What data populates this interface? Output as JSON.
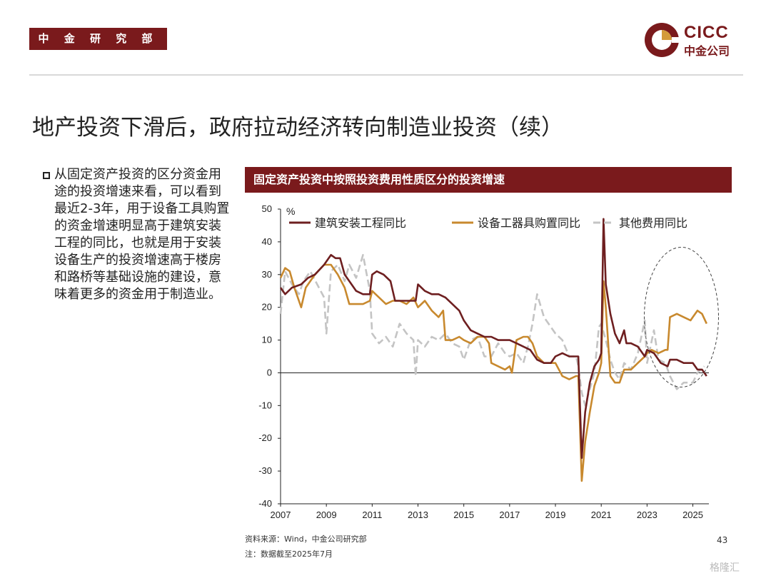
{
  "header": {
    "department": "中 金 研 究 部",
    "logo_en": "CICC",
    "logo_cn": "中金公司"
  },
  "title": "地产投资下滑后，政府拉动经济转向制造业投资（续）",
  "bullet": "从固定资产投资的区分资金用途的投资增速来看，可以看到最近2-3年，用于设备工具购置的资金增速明显高于建筑安装工程的同比，也就是用于安装设备生产的投资增速高于楼房和路桥等基础设施的建设，意味着更多的资金用于制造业。",
  "chart_title": "固定资产投资中按照投资费用性质区分的投资增速",
  "footer": {
    "source": "资料来源：Wind，中金公司研究部",
    "note": "注：数据截至2025年7月",
    "page": "43",
    "watermark": "格隆汇"
  },
  "colors": {
    "brand": "#7a1a1c",
    "construction": "#6e1f20",
    "equipment": "#c8892e",
    "other": "#c4c4c4"
  },
  "chart_data": {
    "type": "line",
    "unit_label": "%",
    "ylim": [
      -40,
      50
    ],
    "yticks": [
      50,
      40,
      30,
      20,
      10,
      0,
      -10,
      -20,
      -30,
      -40
    ],
    "xlim": [
      2007,
      2025.7
    ],
    "xticks": [
      "2007",
      "2009",
      "2011",
      "2013",
      "2015",
      "2017",
      "2019",
      "2021",
      "2023",
      "2025"
    ],
    "legend_position": "top",
    "annotation": "dashed-ellipse around 2023-2025",
    "series": [
      {
        "name": "建筑安装工程同比",
        "color": "#6e1f20",
        "dash": "",
        "points": [
          [
            2007.0,
            26
          ],
          [
            2007.2,
            24
          ],
          [
            2007.5,
            26
          ],
          [
            2007.9,
            27
          ],
          [
            2008.2,
            29
          ],
          [
            2008.5,
            30
          ],
          [
            2008.9,
            33
          ],
          [
            2009.2,
            36
          ],
          [
            2009.4,
            35
          ],
          [
            2009.6,
            35
          ],
          [
            2009.8,
            30
          ],
          [
            2010.0,
            28
          ],
          [
            2010.3,
            25
          ],
          [
            2010.6,
            24
          ],
          [
            2010.9,
            24
          ],
          [
            2011.0,
            30
          ],
          [
            2011.2,
            31
          ],
          [
            2011.5,
            30
          ],
          [
            2011.8,
            28
          ],
          [
            2012.0,
            22
          ],
          [
            2012.3,
            22
          ],
          [
            2012.6,
            22
          ],
          [
            2012.9,
            22
          ],
          [
            2013.0,
            27
          ],
          [
            2013.3,
            25
          ],
          [
            2013.6,
            24
          ],
          [
            2013.9,
            24
          ],
          [
            2014.2,
            23
          ],
          [
            2014.5,
            21
          ],
          [
            2014.8,
            19
          ],
          [
            2015.0,
            16
          ],
          [
            2015.3,
            13
          ],
          [
            2015.6,
            12
          ],
          [
            2015.9,
            11
          ],
          [
            2016.2,
            11
          ],
          [
            2016.5,
            10
          ],
          [
            2016.8,
            10
          ],
          [
            2017.0,
            10
          ],
          [
            2017.3,
            9
          ],
          [
            2017.6,
            8
          ],
          [
            2017.9,
            7
          ],
          [
            2018.2,
            4
          ],
          [
            2018.5,
            3
          ],
          [
            2018.8,
            3
          ],
          [
            2019.0,
            5
          ],
          [
            2019.3,
            6
          ],
          [
            2019.6,
            5
          ],
          [
            2019.9,
            5
          ],
          [
            2020.0,
            5
          ],
          [
            2020.15,
            -26
          ],
          [
            2020.3,
            -12
          ],
          [
            2020.5,
            -3
          ],
          [
            2020.7,
            2
          ],
          [
            2020.9,
            4
          ],
          [
            2021.0,
            6
          ],
          [
            2021.1,
            47
          ],
          [
            2021.2,
            27
          ],
          [
            2021.4,
            18
          ],
          [
            2021.6,
            12
          ],
          [
            2021.8,
            9
          ],
          [
            2022.0,
            13
          ],
          [
            2022.1,
            9
          ],
          [
            2022.3,
            9
          ],
          [
            2022.6,
            8
          ],
          [
            2022.9,
            5
          ],
          [
            2023.0,
            7
          ],
          [
            2023.3,
            6
          ],
          [
            2023.6,
            3
          ],
          [
            2023.9,
            2
          ],
          [
            2024.0,
            4
          ],
          [
            2024.3,
            4
          ],
          [
            2024.6,
            3
          ],
          [
            2024.9,
            3
          ],
          [
            2025.0,
            3
          ],
          [
            2025.2,
            1
          ],
          [
            2025.4,
            1
          ],
          [
            2025.6,
            -1
          ]
        ]
      },
      {
        "name": "设备工器具购置同比",
        "color": "#c8892e",
        "dash": "",
        "points": [
          [
            2007.0,
            29
          ],
          [
            2007.2,
            32
          ],
          [
            2007.4,
            31
          ],
          [
            2007.6,
            26
          ],
          [
            2007.9,
            20
          ],
          [
            2008.1,
            26
          ],
          [
            2008.5,
            30
          ],
          [
            2008.9,
            33
          ],
          [
            2009.2,
            33
          ],
          [
            2009.5,
            30
          ],
          [
            2009.8,
            26
          ],
          [
            2010.0,
            21
          ],
          [
            2010.3,
            21
          ],
          [
            2010.6,
            21
          ],
          [
            2010.9,
            22
          ],
          [
            2011.0,
            25
          ],
          [
            2011.3,
            23
          ],
          [
            2011.6,
            21
          ],
          [
            2011.9,
            22
          ],
          [
            2012.2,
            22
          ],
          [
            2012.5,
            21
          ],
          [
            2012.8,
            23
          ],
          [
            2013.0,
            20
          ],
          [
            2013.3,
            22
          ],
          [
            2013.6,
            19
          ],
          [
            2013.9,
            17
          ],
          [
            2014.1,
            19
          ],
          [
            2014.2,
            10
          ],
          [
            2014.5,
            10
          ],
          [
            2014.8,
            11
          ],
          [
            2015.0,
            10
          ],
          [
            2015.3,
            9
          ],
          [
            2015.6,
            11
          ],
          [
            2015.9,
            11
          ],
          [
            2016.1,
            9
          ],
          [
            2016.2,
            3
          ],
          [
            2016.5,
            2
          ],
          [
            2016.8,
            1
          ],
          [
            2017.0,
            2
          ],
          [
            2017.1,
            0
          ],
          [
            2017.3,
            10
          ],
          [
            2017.6,
            11
          ],
          [
            2017.8,
            11
          ],
          [
            2018.0,
            9
          ],
          [
            2018.2,
            5
          ],
          [
            2018.5,
            3
          ],
          [
            2018.8,
            3
          ],
          [
            2019.0,
            3
          ],
          [
            2019.3,
            -1
          ],
          [
            2019.6,
            -2
          ],
          [
            2019.9,
            -1
          ],
          [
            2020.0,
            -1
          ],
          [
            2020.15,
            -33
          ],
          [
            2020.3,
            -21
          ],
          [
            2020.5,
            -12
          ],
          [
            2020.7,
            -4
          ],
          [
            2020.9,
            0
          ],
          [
            2021.0,
            3
          ],
          [
            2021.1,
            28
          ],
          [
            2021.2,
            20
          ],
          [
            2021.4,
            -1
          ],
          [
            2021.6,
            -3
          ],
          [
            2021.8,
            -3
          ],
          [
            2022.0,
            1
          ],
          [
            2022.3,
            1
          ],
          [
            2022.6,
            3
          ],
          [
            2022.9,
            5
          ],
          [
            2023.0,
            6
          ],
          [
            2023.2,
            7
          ],
          [
            2023.5,
            6
          ],
          [
            2023.8,
            7
          ],
          [
            2023.9,
            7
          ],
          [
            2024.0,
            17
          ],
          [
            2024.3,
            18
          ],
          [
            2024.6,
            17
          ],
          [
            2024.9,
            16
          ],
          [
            2025.0,
            17
          ],
          [
            2025.2,
            19
          ],
          [
            2025.4,
            18
          ],
          [
            2025.6,
            15
          ]
        ]
      },
      {
        "name": "其他费用同比",
        "color": "#c4c4c4",
        "dash": "10,5",
        "points": [
          [
            2007.0,
            18
          ],
          [
            2007.2,
            31
          ],
          [
            2007.5,
            27
          ],
          [
            2007.8,
            24
          ],
          [
            2008.0,
            28
          ],
          [
            2008.3,
            31
          ],
          [
            2008.6,
            27
          ],
          [
            2008.9,
            23
          ],
          [
            2009.0,
            12
          ],
          [
            2009.2,
            31
          ],
          [
            2009.5,
            33
          ],
          [
            2009.8,
            28
          ],
          [
            2010.0,
            33
          ],
          [
            2010.3,
            29
          ],
          [
            2010.6,
            36
          ],
          [
            2010.9,
            25
          ],
          [
            2011.0,
            12
          ],
          [
            2011.3,
            9
          ],
          [
            2011.6,
            11
          ],
          [
            2011.9,
            8
          ],
          [
            2012.2,
            15
          ],
          [
            2012.5,
            12
          ],
          [
            2012.8,
            10
          ],
          [
            2012.9,
            -1
          ],
          [
            2013.0,
            10
          ],
          [
            2013.3,
            8
          ],
          [
            2013.6,
            11
          ],
          [
            2013.9,
            10
          ],
          [
            2014.2,
            12
          ],
          [
            2014.5,
            9
          ],
          [
            2014.8,
            8
          ],
          [
            2015.0,
            4
          ],
          [
            2015.3,
            10
          ],
          [
            2015.6,
            11
          ],
          [
            2015.9,
            5
          ],
          [
            2016.2,
            5
          ],
          [
            2016.5,
            9
          ],
          [
            2016.8,
            6
          ],
          [
            2017.0,
            5
          ],
          [
            2017.3,
            6
          ],
          [
            2017.6,
            3
          ],
          [
            2017.8,
            8
          ],
          [
            2018.0,
            15
          ],
          [
            2018.2,
            24
          ],
          [
            2018.5,
            17
          ],
          [
            2018.8,
            14
          ],
          [
            2019.0,
            12
          ],
          [
            2019.3,
            10
          ],
          [
            2019.6,
            5
          ],
          [
            2019.9,
            5
          ],
          [
            2020.0,
            2
          ],
          [
            2020.15,
            -6
          ],
          [
            2020.3,
            -10
          ],
          [
            2020.5,
            -5
          ],
          [
            2020.7,
            0
          ],
          [
            2020.9,
            14
          ],
          [
            2021.0,
            15
          ],
          [
            2021.2,
            10
          ],
          [
            2021.4,
            4
          ],
          [
            2021.6,
            0
          ],
          [
            2021.8,
            -2
          ],
          [
            2022.0,
            3
          ],
          [
            2022.3,
            1
          ],
          [
            2022.6,
            6
          ],
          [
            2022.9,
            16
          ],
          [
            2023.0,
            3
          ],
          [
            2023.3,
            13
          ],
          [
            2023.5,
            4
          ],
          [
            2023.8,
            3
          ],
          [
            2024.0,
            -1
          ],
          [
            2024.3,
            -5
          ],
          [
            2024.6,
            -3
          ],
          [
            2024.9,
            -3
          ],
          [
            2025.0,
            -3
          ],
          [
            2025.2,
            0
          ],
          [
            2025.5,
            2
          ]
        ]
      }
    ]
  }
}
